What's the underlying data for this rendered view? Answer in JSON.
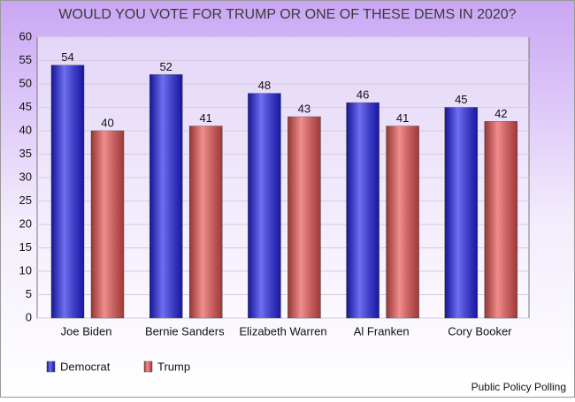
{
  "chart_data": {
    "type": "bar",
    "title": "WOULD YOU VOTE FOR TRUMP OR ONE OF THESE DEMS IN 2020?",
    "categories": [
      "Joe Biden",
      "Bernie Sanders",
      "Elizabeth Warren",
      "Al Franken",
      "Cory Booker"
    ],
    "series": [
      {
        "name": "Democrat",
        "color": "#2020e8",
        "values": [
          54,
          52,
          48,
          46,
          45
        ]
      },
      {
        "name": "Trump",
        "color": "#e85050",
        "values": [
          40,
          41,
          43,
          41,
          42
        ]
      }
    ],
    "ylim": [
      0,
      60
    ],
    "yticks": [
      0,
      5,
      10,
      15,
      20,
      25,
      30,
      35,
      40,
      45,
      50,
      55,
      60
    ],
    "grid": true,
    "legend": "bottom-left",
    "source": "Public Policy Polling"
  }
}
